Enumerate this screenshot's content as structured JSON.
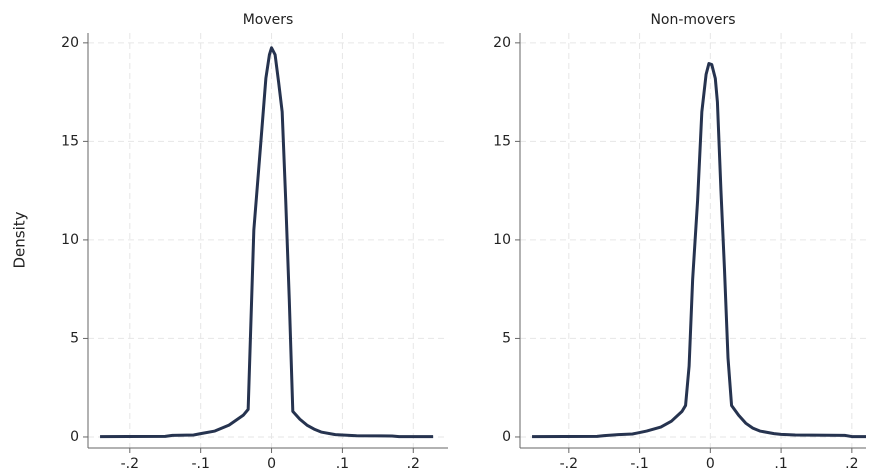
{
  "chart_data": [
    {
      "type": "line",
      "title": "Movers",
      "ylabel": "Density",
      "grid": true,
      "xlim": [
        -0.259,
        0.249
      ],
      "ylim": [
        -0.56,
        20.5
      ],
      "xticks": [
        {
          "value": -0.2,
          "label": "-.2"
        },
        {
          "value": -0.1,
          "label": "-.1"
        },
        0,
        {
          "value": 0.1,
          "label": ".1"
        },
        {
          "value": 0.2,
          "label": ".2"
        }
      ],
      "yticks": [
        0,
        5,
        10,
        15,
        20
      ],
      "series": [
        {
          "color": "#26334f",
          "x": [
            -0.242,
            -0.15,
            -0.14,
            -0.11,
            -0.1,
            -0.08,
            -0.06,
            -0.04,
            -0.033,
            -0.025,
            -0.015,
            -0.008,
            -0.003,
            0.0,
            0.005,
            0.01,
            0.015,
            0.02,
            0.025,
            0.03,
            0.04,
            0.05,
            0.06,
            0.07,
            0.09,
            0.1,
            0.12,
            0.17,
            0.18,
            0.228
          ],
          "values": [
            0.02,
            0.03,
            0.08,
            0.1,
            0.17,
            0.3,
            0.6,
            1.1,
            1.4,
            10.5,
            15,
            18.2,
            19.4,
            19.75,
            19.4,
            18,
            16.5,
            12,
            7,
            1.3,
            0.9,
            0.6,
            0.4,
            0.25,
            0.12,
            0.1,
            0.06,
            0.05,
            0.02,
            0.02
          ]
        }
      ]
    },
    {
      "type": "line",
      "title": "Non-movers",
      "grid": true,
      "xlim": [
        -0.269,
        0.22
      ],
      "ylim": [
        -0.56,
        20.5
      ],
      "xticks": [
        {
          "value": -0.2,
          "label": "-.2"
        },
        {
          "value": -0.1,
          "label": "-.1"
        },
        0,
        {
          "value": 0.1,
          "label": ".1"
        },
        {
          "value": 0.2,
          "label": ".2"
        }
      ],
      "yticks": [
        0,
        5,
        10,
        15,
        20
      ],
      "series": [
        {
          "color": "#26334f",
          "x": [
            -0.252,
            -0.16,
            -0.15,
            -0.13,
            -0.11,
            -0.09,
            -0.07,
            -0.055,
            -0.04,
            -0.035,
            -0.03,
            -0.025,
            -0.018,
            -0.012,
            -0.006,
            -0.002,
            0.002,
            0.007,
            0.01,
            0.015,
            0.02,
            0.025,
            0.03,
            0.04,
            0.05,
            0.06,
            0.07,
            0.09,
            0.1,
            0.12,
            0.19,
            0.2,
            0.22
          ],
          "values": [
            0.02,
            0.03,
            0.07,
            0.12,
            0.15,
            0.3,
            0.5,
            0.8,
            1.3,
            1.6,
            3.6,
            8,
            12,
            16.5,
            18.4,
            18.95,
            18.9,
            18.2,
            17,
            12.5,
            8.5,
            4,
            1.6,
            1.1,
            0.7,
            0.45,
            0.3,
            0.17,
            0.13,
            0.1,
            0.08,
            0.02,
            0.02
          ]
        }
      ]
    }
  ]
}
